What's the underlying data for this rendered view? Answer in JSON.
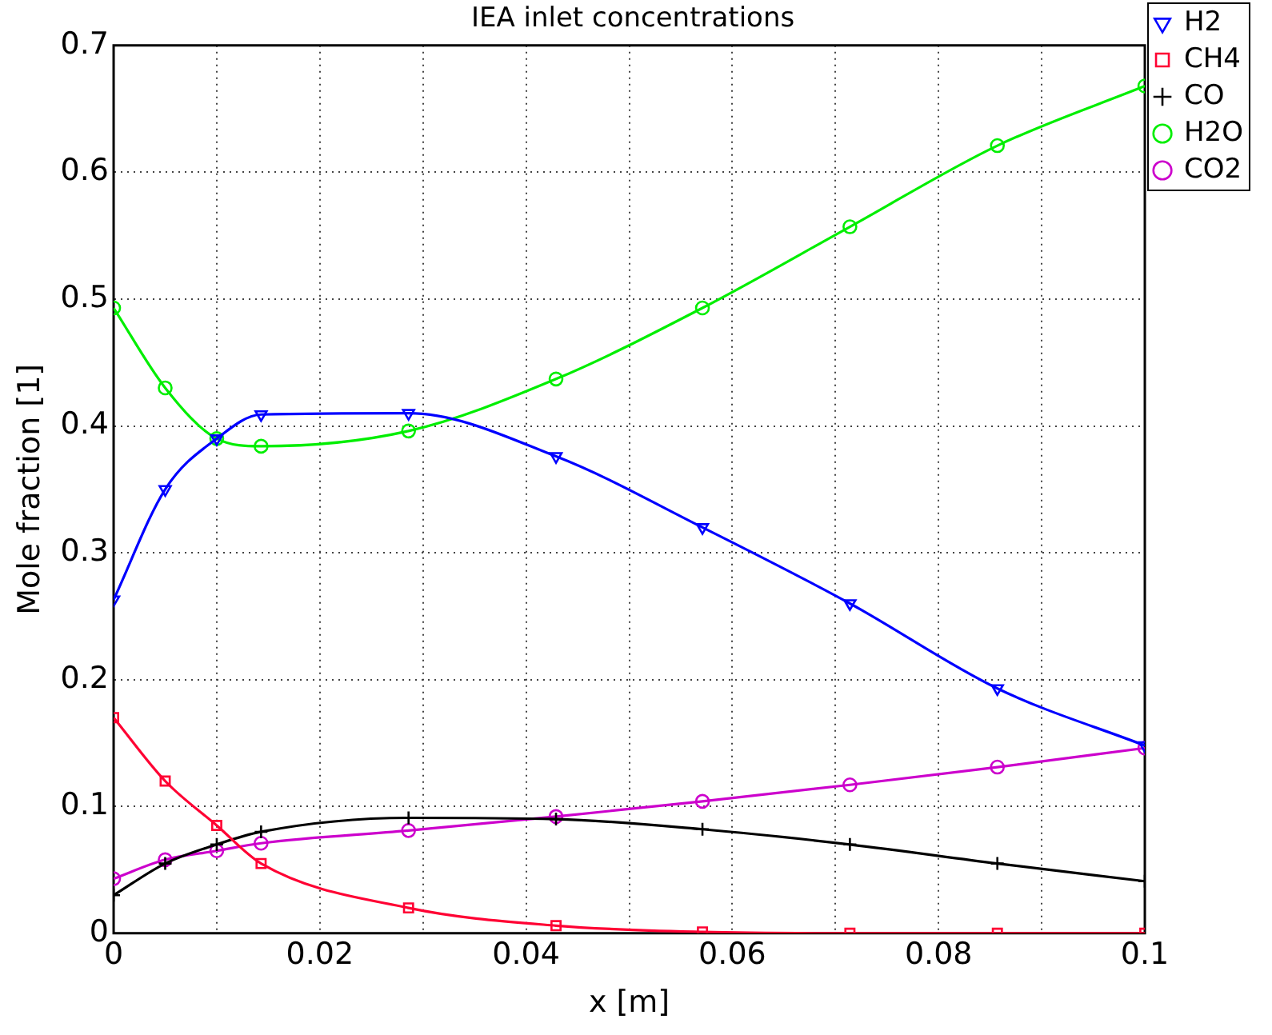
{
  "chart_data": {
    "type": "line",
    "title": "IEA inlet concentrations",
    "xlabel": "x [m]",
    "ylabel": "Mole fraction [1]",
    "x": [
      0,
      0.005,
      0.01,
      0.0143,
      0.0286,
      0.0429,
      0.0571,
      0.0714,
      0.0857,
      0.1
    ],
    "series": [
      {
        "name": "H2",
        "color": "#0000ff",
        "marker": "triangle",
        "values": [
          0.263,
          0.35,
          0.39,
          0.409,
          0.41,
          0.376,
          0.32,
          0.26,
          0.193,
          0.148
        ]
      },
      {
        "name": "CH4",
        "color": "#ff0033",
        "marker": "square",
        "values": [
          0.17,
          0.12,
          0.085,
          0.055,
          0.02,
          0.006,
          0.001,
          0,
          0,
          0
        ]
      },
      {
        "name": "CO",
        "color": "#000000",
        "marker": "cross",
        "values": [
          0.03,
          0.055,
          0.07,
          0.08,
          0.091,
          0.09,
          0.082,
          0.07,
          0.055,
          0.041
        ]
      },
      {
        "name": "H2O",
        "color": "#00ee00",
        "marker": "circle",
        "values": [
          0.493,
          0.43,
          0.39,
          0.384,
          0.396,
          0.437,
          0.493,
          0.557,
          0.621,
          0.668
        ]
      },
      {
        "name": "CO2",
        "color": "#cc00cc",
        "marker": "circle",
        "values": [
          0.043,
          0.058,
          0.065,
          0.071,
          0.081,
          0.092,
          0.104,
          0.117,
          0.131,
          0.146
        ]
      }
    ],
    "xlim": [
      0,
      0.1
    ],
    "xticks": [
      0,
      {
        "value": 0.01,
        "label": null
      },
      0.02,
      {
        "value": 0.03,
        "label": null
      },
      0.04,
      {
        "value": 0.05,
        "label": null
      },
      0.06,
      {
        "value": 0.07,
        "label": null
      },
      0.08,
      {
        "value": 0.09,
        "label": null
      },
      0.1
    ],
    "ylim": [
      0,
      0.7
    ],
    "yticks": [
      0,
      0.1,
      0.2,
      0.3,
      0.4,
      0.5,
      0.6,
      0.7
    ],
    "grid": true,
    "legend": "top right",
    "line_style": "solid"
  }
}
